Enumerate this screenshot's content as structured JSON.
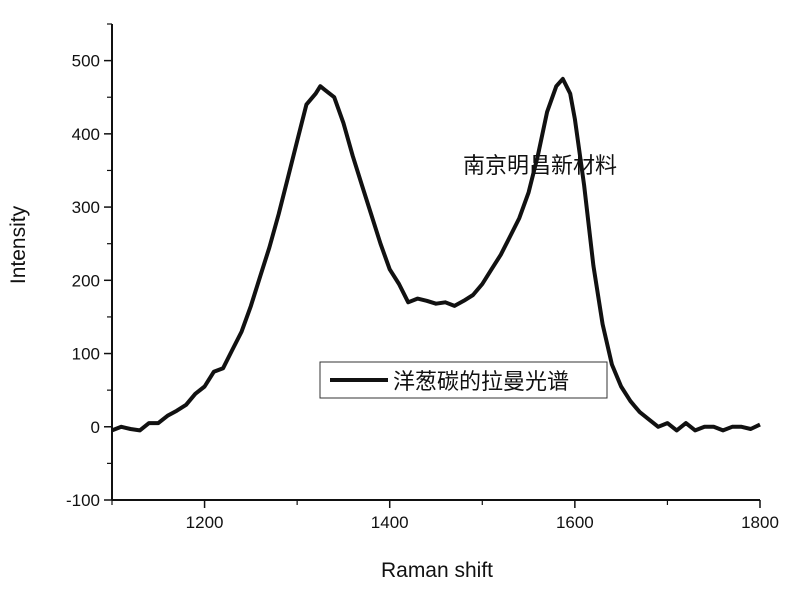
{
  "chart_data": {
    "type": "line",
    "title": "",
    "xlabel": "Raman shift",
    "ylabel": "Intensity",
    "xlim": [
      1100,
      1800
    ],
    "ylim": [
      -100,
      550
    ],
    "xticks": [
      1200,
      1400,
      1600,
      1800
    ],
    "yticks": [
      -100,
      0,
      100,
      200,
      300,
      400,
      500
    ],
    "xtick_labels": [
      "1200",
      "1400",
      "1600",
      "1800"
    ],
    "ytick_labels": [
      "-100",
      "0",
      "100",
      "200",
      "300",
      "400",
      "500"
    ],
    "grid": false,
    "legend": {
      "placement": "center-right",
      "entries": [
        "洋葱碳的拉曼光谱"
      ]
    },
    "annotations": [
      "南京明昌新材料"
    ],
    "series": [
      {
        "name": "洋葱碳的拉曼光谱",
        "color": "#111111",
        "x": [
          1100,
          1110,
          1120,
          1130,
          1140,
          1150,
          1160,
          1170,
          1180,
          1190,
          1200,
          1210,
          1220,
          1230,
          1240,
          1250,
          1260,
          1270,
          1280,
          1290,
          1300,
          1310,
          1320,
          1325,
          1330,
          1340,
          1350,
          1360,
          1370,
          1380,
          1390,
          1400,
          1410,
          1420,
          1430,
          1440,
          1450,
          1460,
          1470,
          1480,
          1490,
          1500,
          1510,
          1520,
          1530,
          1540,
          1550,
          1560,
          1570,
          1580,
          1587,
          1595,
          1600,
          1610,
          1620,
          1630,
          1640,
          1650,
          1660,
          1670,
          1680,
          1690,
          1700,
          1710,
          1720,
          1730,
          1740,
          1750,
          1760,
          1770,
          1780,
          1790,
          1800
        ],
        "y": [
          -5,
          0,
          -3,
          -5,
          5,
          5,
          15,
          22,
          30,
          45,
          55,
          75,
          80,
          105,
          130,
          165,
          205,
          245,
          290,
          340,
          390,
          440,
          455,
          465,
          460,
          450,
          415,
          370,
          330,
          290,
          250,
          215,
          195,
          170,
          175,
          172,
          168,
          170,
          165,
          172,
          180,
          195,
          215,
          235,
          260,
          285,
          320,
          370,
          430,
          465,
          475,
          455,
          420,
          330,
          220,
          140,
          85,
          55,
          35,
          20,
          10,
          0,
          5,
          -5,
          5,
          -5,
          0,
          0,
          -5,
          0,
          0,
          -3,
          3
        ]
      }
    ]
  }
}
